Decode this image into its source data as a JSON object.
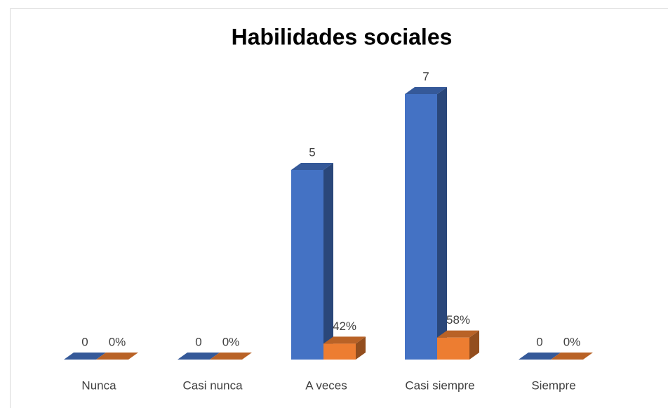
{
  "chart_data": {
    "type": "bar3d",
    "title": "Habilidades sociales",
    "categories": [
      "Nunca",
      "Casi nunca",
      "A veces",
      "Casi siempre",
      "Siempre"
    ],
    "series": [
      {
        "color": "#4472c4",
        "values": [
          0,
          0,
          5,
          7,
          0
        ]
      },
      {
        "color": "#ed7d31",
        "values": [
          0,
          0,
          0.42,
          0.58,
          0
        ],
        "value_labels": [
          "0%",
          "0%",
          "42%",
          "58%",
          "0%"
        ]
      }
    ],
    "ylim": [
      0,
      8
    ]
  }
}
